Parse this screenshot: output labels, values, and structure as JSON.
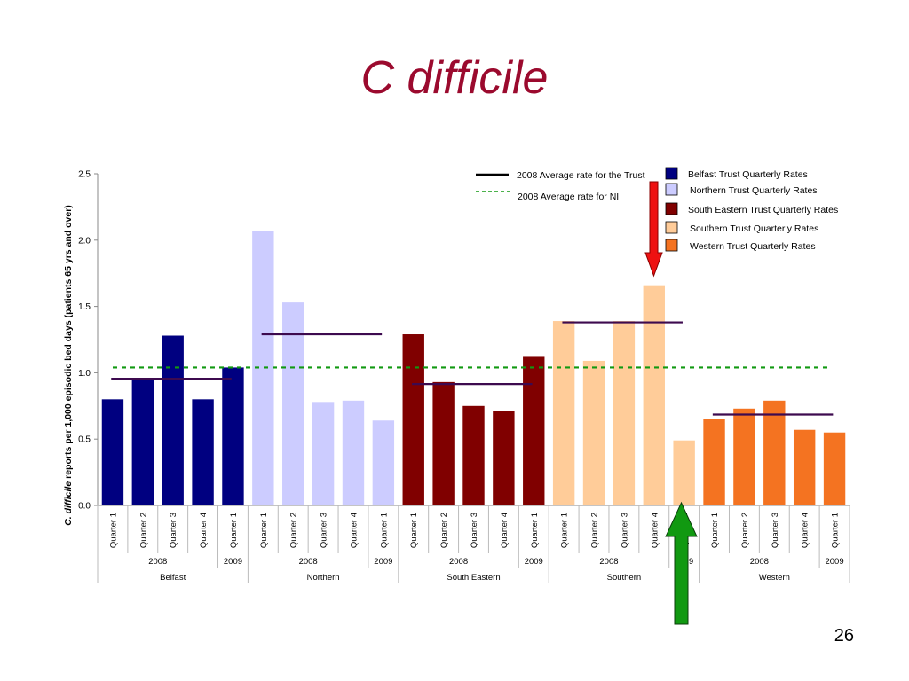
{
  "slide": {
    "title": "C difficile",
    "page_number": "26"
  },
  "chart_data": {
    "type": "bar",
    "ylabel_italic": "C. difficile",
    "ylabel_rest": " reports per 1,000 episodic bed days (patients 65 yrs and over)",
    "ylim": [
      0,
      2.5
    ],
    "yticks": [
      "0.0",
      "0.5",
      "1.0",
      "1.5",
      "2.0",
      "2.5"
    ],
    "ytick_values": [
      0,
      0.5,
      1.0,
      1.5,
      2.0,
      2.5
    ],
    "categories": [
      "Quarter 1",
      "Quarter 2",
      "Quarter 3",
      "Quarter 4",
      "Quarter 1"
    ],
    "years": [
      "2008",
      "2009"
    ],
    "groups": [
      {
        "name": "Belfast",
        "color": "#000080",
        "values": [
          0.8,
          0.96,
          1.28,
          0.8,
          1.04
        ],
        "avg_2008": 0.955
      },
      {
        "name": "Northern",
        "color": "#ccccff",
        "values": [
          2.07,
          1.53,
          0.78,
          0.79,
          0.64
        ],
        "avg_2008": 1.29
      },
      {
        "name": "South Eastern",
        "color": "#800000",
        "values": [
          1.29,
          0.93,
          0.75,
          0.71,
          1.12
        ],
        "avg_2008": 0.915
      },
      {
        "name": "Southern",
        "color": "#ffcc99",
        "values": [
          1.39,
          1.09,
          1.39,
          1.66,
          0.49
        ],
        "avg_2008": 1.38
      },
      {
        "name": "Western",
        "color": "#f47321",
        "values": [
          0.65,
          0.73,
          0.79,
          0.57,
          0.55
        ],
        "avg_2008": 0.685
      }
    ],
    "ni_average_2008": 1.04,
    "legend": {
      "trust_avg": "2008 Average rate for the Trust",
      "ni_avg": "2008 Average rate for NI",
      "series": [
        {
          "label": "Belfast  Trust Quarterly Rates",
          "color": "#000080"
        },
        {
          "label": "Northern Trust Quarterly Rates",
          "color": "#ccccff"
        },
        {
          "label": "South Eastern Trust Quarterly Rates",
          "color": "#800000"
        },
        {
          "label": "Southern Trust Quarterly Rates",
          "color": "#ffcc99"
        },
        {
          "label": "Western Trust Quarterly Rates",
          "color": "#f47321"
        }
      ],
      "placement": "top-right"
    },
    "avg_line_color": "#3d0a4f",
    "ni_line_color": "#119911",
    "grid": false
  },
  "annotations": {
    "down_arrow_color": "#ee1111",
    "up_arrow_color": "#119911"
  }
}
